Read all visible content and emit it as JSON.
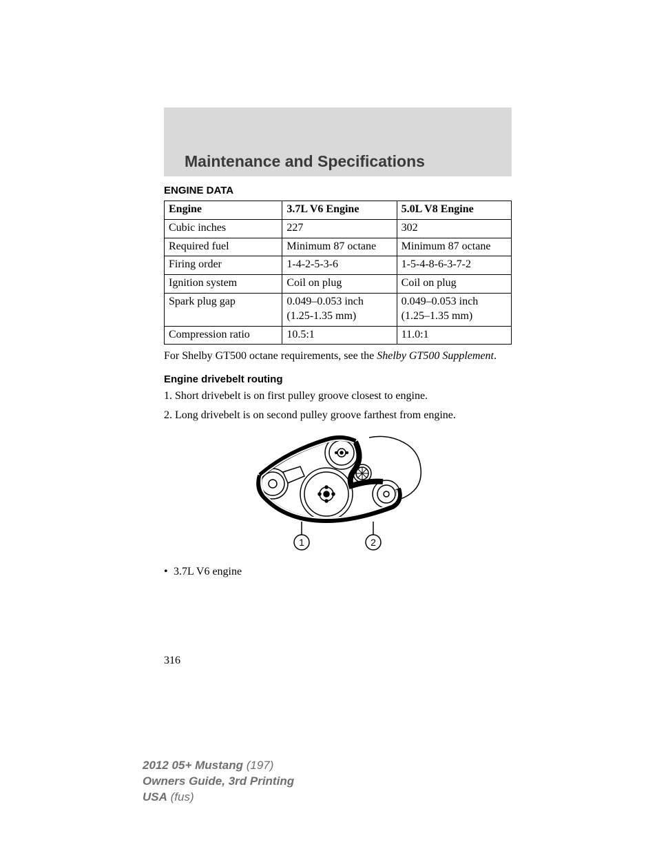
{
  "header": {
    "section_title": "Maintenance and Specifications"
  },
  "engine_data": {
    "heading": "ENGINE DATA",
    "columns": [
      "Engine",
      "3.7L V6 Engine",
      "5.0L V8 Engine"
    ],
    "rows": [
      [
        "Cubic inches",
        "227",
        "302"
      ],
      [
        "Required fuel",
        "Minimum 87 octane",
        "Minimum 87 octane"
      ],
      [
        "Firing order",
        "1-4-2-5-3-6",
        "1-5-4-8-6-3-7-2"
      ],
      [
        "Ignition system",
        "Coil on plug",
        "Coil on plug"
      ],
      [
        "Spark plug gap",
        "0.049–0.053 inch\n(1.25-1.35 mm)",
        "0.049–0.053 inch\n(1.25–1.35 mm)"
      ],
      [
        "Compression ratio",
        "10.5:1",
        "11.0:1"
      ]
    ],
    "note_prefix": "For Shelby GT500 octane requirements, see the ",
    "note_italic": "Shelby GT500 Supplement",
    "note_suffix": "."
  },
  "drivebelt": {
    "heading": "Engine drivebelt routing",
    "steps": [
      "1. Short drivebelt is on first pulley groove closest to engine.",
      "2. Long drivebelt is on second pulley groove farthest from engine."
    ],
    "callouts": [
      "1",
      "2"
    ],
    "bullet": "3.7L V6 engine"
  },
  "page_number": "316",
  "footer": {
    "line1_bold": "2012 05+ Mustang",
    "line1_light": " (197)",
    "line2": "Owners Guide, 3rd Printing",
    "line3_bold": "USA",
    "line3_light": " (fus)"
  },
  "style": {
    "header_bg": "#d9d9d9",
    "header_title_color": "#3a3a3a",
    "footer_color": "#6e6e6e",
    "text_color": "#000000",
    "border_color": "#000000",
    "page_bg": "#ffffff",
    "table_font_size_pt": 12,
    "heading_font_size_pt": 11,
    "section_title_font_size_pt": 17
  }
}
